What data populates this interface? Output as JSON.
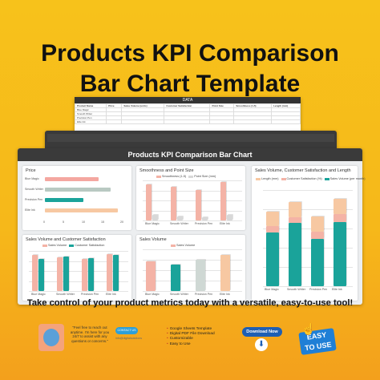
{
  "title_line1": "Products KPI Comparison",
  "title_line2": "Bar Chart Template",
  "tagline": "Take control of your product metrics today with a versatile, easy-to-use tool!",
  "back_sheet": {
    "header": "DATA",
    "rows": [
      [
        "Product Name",
        "Price",
        "Sales Volume (units)",
        "Customer Satisfaction",
        "Point Size",
        "Smoothness (1-5)",
        "Length (mm)"
      ],
      [
        "Blue Magic",
        "",
        "",
        "",
        "",
        "",
        ""
      ],
      [
        "Smooth Writer",
        "",
        "",
        "",
        "",
        "",
        ""
      ],
      [
        "Precision Pen",
        "",
        "",
        "",
        "",
        "",
        ""
      ],
      [
        "Elite Ink",
        "",
        "",
        "",
        "",
        "",
        ""
      ]
    ]
  },
  "front_sheet": {
    "header": "Products KPI Comparison Bar Chart"
  },
  "chart_data": [
    {
      "type": "bar",
      "title": "Price",
      "orientation": "horizontal",
      "categories": [
        "Blue Magic",
        "Smooth Writer",
        "Precision Pen",
        "Elite Ink"
      ],
      "series": [
        {
          "values": [
            14,
            17,
            10,
            19
          ]
        }
      ],
      "colors": [
        "#f4a7a0",
        "#b9c9c2",
        "#1aa39a",
        "#f7c8a2"
      ],
      "xlim": [
        0,
        20
      ],
      "ticks": [
        "0",
        "5",
        "10",
        "15",
        "20"
      ]
    },
    {
      "type": "bar",
      "title": "Smoothness and Point Size",
      "categories": [
        "Blue Magic",
        "Smooth Writer",
        "Precision Pen",
        "Elite Ink"
      ],
      "series": [
        {
          "name": "Smoothness (1-5)",
          "values": [
            4.5,
            4.2,
            3.8,
            4.8
          ]
        },
        {
          "name": "Point Size (mm)",
          "values": [
            0.7,
            0.5,
            0.4,
            0.7
          ]
        }
      ],
      "colors": [
        "#f4b3a6",
        "#d8d8d8"
      ],
      "ylim": [
        0,
        5
      ]
    },
    {
      "type": "bar",
      "title": "Sales Volume and Customer Satisfaction",
      "categories": [
        "Blue Magic",
        "Smooth Writer",
        "Precision Pen",
        "Elite Ink"
      ],
      "series": [
        {
          "name": "Sales Volume",
          "values": [
            4.5,
            4.2,
            4.0,
            4.6
          ]
        },
        {
          "name": "Customer Satisfaction",
          "values": [
            4.0,
            4.3,
            4.1,
            4.5
          ]
        }
      ],
      "colors": [
        "#f4b3a6",
        "#1aa39a",
        "#cfd8d4"
      ],
      "ylim": [
        0,
        5
      ]
    },
    {
      "type": "bar",
      "title": "Sales Volume",
      "categories": [
        "Blue Magic",
        "Smooth Writer",
        "Precision Pen",
        "Elite Ink"
      ],
      "series": [
        {
          "name": "Sales Volume",
          "values": [
            500,
            450,
            520,
            600
          ]
        }
      ],
      "colors": [
        "#f4b3a6",
        "#1aa39a",
        "#cfd8d4",
        "#f7c8a2"
      ],
      "ylim": [
        0,
        700
      ]
    },
    {
      "type": "bar",
      "title": "Sales Volume, Customer Satisfaction and Length",
      "stacked": true,
      "categories": [
        "Blue Magic",
        "Smooth Writer",
        "Precision Pen",
        "Elite Ink"
      ],
      "series": [
        {
          "name": "Length (mm)",
          "values": [
            140,
            140,
            140,
            140
          ]
        },
        {
          "name": "Customer Satisfaction (%)",
          "values": [
            60,
            55,
            70,
            75
          ]
        },
        {
          "name": "Sales Volume (per month)",
          "values": [
            500,
            590,
            440,
            600
          ]
        }
      ],
      "colors": [
        "#f7c8a2",
        "#f4b3a6",
        "#1aa39a"
      ],
      "ylim": [
        0,
        900
      ]
    }
  ],
  "footer": {
    "note": "\"Feel free to reach out anytime. I'm here for you 24/7 to assist with any questions or concerns.\"",
    "contact_label": "CONTACT US",
    "contact_sub": "info@digitalsolutions",
    "features": [
      "Google Sheets Template",
      "Digital PDF File Download",
      "Customizable",
      "Easy to Use"
    ],
    "download_label": "Download Now",
    "download_icon": "cloud-download-icon",
    "easy_label_1": "EASY",
    "easy_label_2": "TO USE"
  }
}
